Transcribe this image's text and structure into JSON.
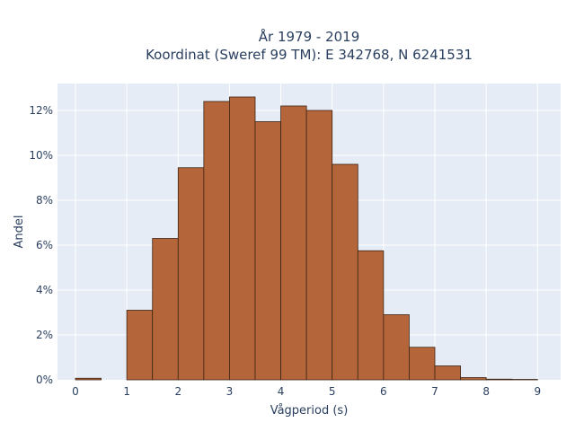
{
  "chart_data": {
    "type": "bar",
    "title_line1": "År 1979 - 2019",
    "title_line2": "Koordinat (Sweref 99 TM): E 342768, N 6241531",
    "xlabel": "Vågperiod (s)",
    "ylabel": "Andel",
    "xlim": [
      -0.35,
      9.45
    ],
    "ylim": [
      0,
      13.2
    ],
    "xticks": [
      0,
      1,
      2,
      3,
      4,
      5,
      6,
      7,
      8,
      9
    ],
    "yticks": [
      0,
      2,
      4,
      6,
      8,
      10,
      12
    ],
    "ytick_labels": [
      "0%",
      "2%",
      "4%",
      "6%",
      "8%",
      "10%",
      "12%"
    ],
    "bin_width": 0.5,
    "bins": [
      {
        "x0": 0.0,
        "value": 0.07
      },
      {
        "x0": 0.5,
        "value": 0.0
      },
      {
        "x0": 1.0,
        "value": 3.1
      },
      {
        "x0": 1.5,
        "value": 6.3
      },
      {
        "x0": 2.0,
        "value": 9.45
      },
      {
        "x0": 2.5,
        "value": 12.4
      },
      {
        "x0": 3.0,
        "value": 12.6
      },
      {
        "x0": 3.5,
        "value": 11.5
      },
      {
        "x0": 4.0,
        "value": 12.2
      },
      {
        "x0": 4.5,
        "value": 12.0
      },
      {
        "x0": 5.0,
        "value": 9.6
      },
      {
        "x0": 5.5,
        "value": 5.75
      },
      {
        "x0": 6.0,
        "value": 2.9
      },
      {
        "x0": 6.5,
        "value": 1.45
      },
      {
        "x0": 7.0,
        "value": 0.62
      },
      {
        "x0": 7.5,
        "value": 0.1
      },
      {
        "x0": 8.0,
        "value": 0.03
      },
      {
        "x0": 8.5,
        "value": 0.02
      }
    ],
    "grid": true,
    "colors": {
      "bar_fill": "#b5653a",
      "bar_stroke": "#3d2415",
      "plot_bg": "#e5ecf6",
      "grid": "#ffffff",
      "text": "#2a3f5f"
    }
  }
}
